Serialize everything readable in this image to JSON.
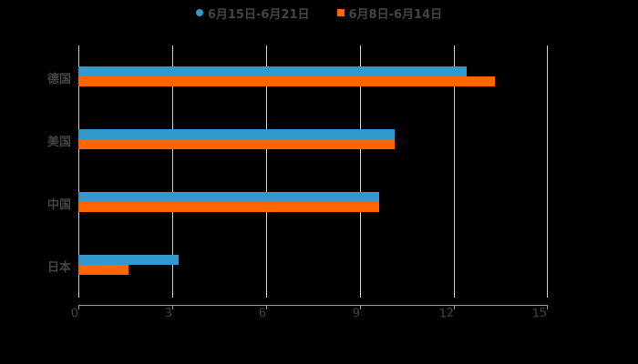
{
  "legend": [
    {
      "label": "6月15日-6月21日",
      "color": "#3399cc",
      "shape": "circle"
    },
    {
      "label": "6月8日-6月14日",
      "color": "#ff6600",
      "shape": "square"
    }
  ],
  "chart_data": {
    "type": "bar",
    "orientation": "horizontal",
    "title": "",
    "xlabel": "",
    "ylabel": "",
    "categories": [
      "德国",
      "美国",
      "中国",
      "日本"
    ],
    "series": [
      {
        "name": "6月15日-6月21日",
        "color": "#3399cc",
        "values": [
          12.4,
          10.1,
          9.6,
          3.2
        ]
      },
      {
        "name": "6月8日-6月14日",
        "color": "#ff6600",
        "values": [
          13.3,
          10.1,
          9.6,
          1.6
        ]
      }
    ],
    "xlim": [
      0,
      15
    ],
    "xticks": [
      "0",
      "3",
      "6",
      "9",
      "12",
      "15"
    ],
    "grid": true,
    "legend_position": "top"
  }
}
